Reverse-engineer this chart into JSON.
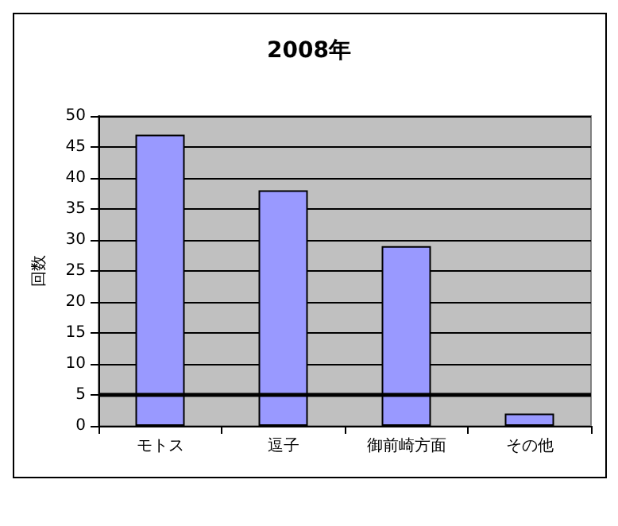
{
  "chart_data": {
    "type": "bar",
    "title": "2008年",
    "ylabel": "回数",
    "categories": [
      "モトス",
      "逗子",
      "御前崎方面",
      "その他"
    ],
    "values": [
      47,
      38,
      29,
      2
    ],
    "color": "#9999ff",
    "ylim": [
      0,
      50
    ],
    "yticks": [
      0,
      5,
      10,
      15,
      20,
      25,
      30,
      35,
      40,
      45,
      50
    ],
    "grid": "y",
    "ref_lines": [
      {
        "axis": "y",
        "value": 5,
        "color": "#000000"
      }
    ]
  }
}
